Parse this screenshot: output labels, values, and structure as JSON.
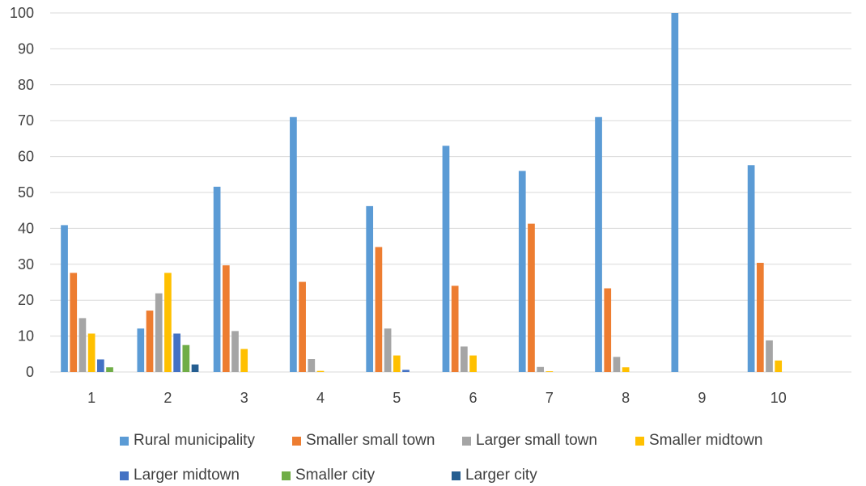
{
  "chart_data": {
    "type": "bar",
    "title": "",
    "xlabel": "",
    "ylabel": "",
    "ylim": [
      0,
      100
    ],
    "yticks": [
      0,
      10,
      20,
      30,
      40,
      50,
      60,
      70,
      80,
      90,
      100
    ],
    "grid": true,
    "legend_position": "bottom",
    "categories": [
      "1",
      "2",
      "3",
      "4",
      "5",
      "6",
      "7",
      "8",
      "9",
      "10"
    ],
    "series": [
      {
        "name": "Rural municipality",
        "color": "#5B9BD5",
        "values": [
          40.9,
          12.1,
          51.6,
          71.0,
          46.2,
          63.0,
          56.0,
          71.0,
          100.0,
          57.6
        ]
      },
      {
        "name": "Smaller small town",
        "color": "#ED7D31",
        "values": [
          27.6,
          17.1,
          29.7,
          25.1,
          34.8,
          24.0,
          41.3,
          23.3,
          0,
          30.4
        ]
      },
      {
        "name": "Larger small town",
        "color": "#A5A5A5",
        "values": [
          15.0,
          21.9,
          11.4,
          3.6,
          12.1,
          7.1,
          1.4,
          4.2,
          0,
          8.8
        ]
      },
      {
        "name": "Smaller midtown",
        "color": "#FFC000",
        "values": [
          10.7,
          27.6,
          6.4,
          0.3,
          4.6,
          4.6,
          0.2,
          1.3,
          0,
          3.2
        ]
      },
      {
        "name": "Larger midtown",
        "color": "#4472C4",
        "values": [
          3.5,
          10.7,
          0,
          0,
          0.6,
          0,
          0,
          0,
          0,
          0
        ]
      },
      {
        "name": "Smaller city",
        "color": "#70AD47",
        "values": [
          1.3,
          7.5,
          0,
          0,
          0,
          0,
          0,
          0,
          0,
          0
        ]
      },
      {
        "name": "Larger city",
        "color": "#255E91",
        "values": [
          0,
          2.1,
          0,
          0,
          0,
          0,
          0,
          0,
          0,
          0
        ]
      }
    ]
  }
}
